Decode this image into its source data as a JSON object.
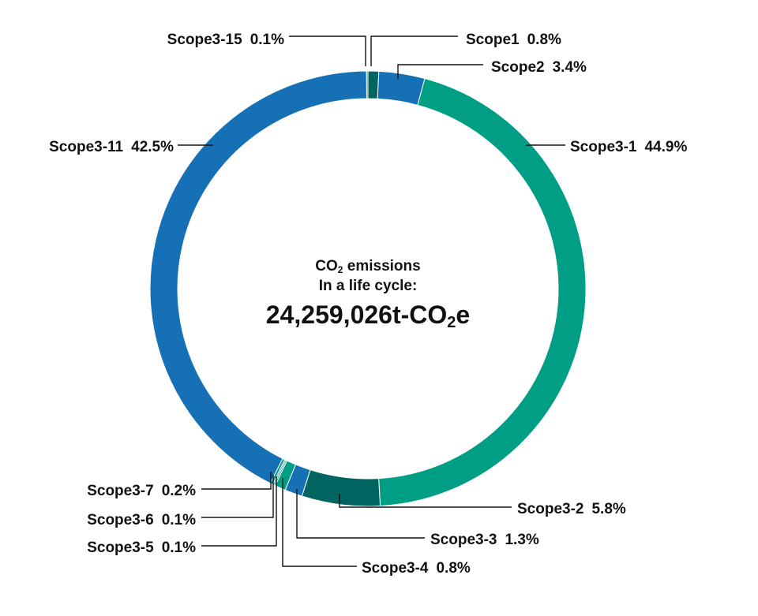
{
  "chart_data": {
    "type": "pie",
    "style": "donut",
    "center": {
      "line1_main": "CO",
      "line1_sub": "2",
      "line1_rest": " emissions",
      "line2": "In a life cycle:",
      "total_main": "24,259,026t-CO",
      "total_sub": "2",
      "total_rest": "e"
    },
    "slices": [
      {
        "name": "Scope1",
        "value": 0.8,
        "label": "0.8%",
        "color": "#006560"
      },
      {
        "name": "Scope2",
        "value": 3.4,
        "label": "3.4%",
        "color": "#1570b5"
      },
      {
        "name": "Scope3-1",
        "value": 44.9,
        "label": "44.9%",
        "color": "#009e84"
      },
      {
        "name": "Scope3-2",
        "value": 5.8,
        "label": "5.8%",
        "color": "#006560"
      },
      {
        "name": "Scope3-3",
        "value": 1.3,
        "label": "1.3%",
        "color": "#1570b5"
      },
      {
        "name": "Scope3-4",
        "value": 0.8,
        "label": "0.8%",
        "color": "#009e84"
      },
      {
        "name": "Scope3-5",
        "value": 0.1,
        "label": "0.1%",
        "color": "#006560"
      },
      {
        "name": "Scope3-6",
        "value": 0.1,
        "label": "0.1%",
        "color": "#1570b5"
      },
      {
        "name": "Scope3-7",
        "value": 0.2,
        "label": "0.2%",
        "color": "#009e84"
      },
      {
        "name": "Scope3-11",
        "value": 42.5,
        "label": "42.5%",
        "color": "#1570b5"
      },
      {
        "name": "Scope3-15",
        "value": 0.1,
        "label": "0.1%",
        "color": "#009e84"
      }
    ]
  }
}
